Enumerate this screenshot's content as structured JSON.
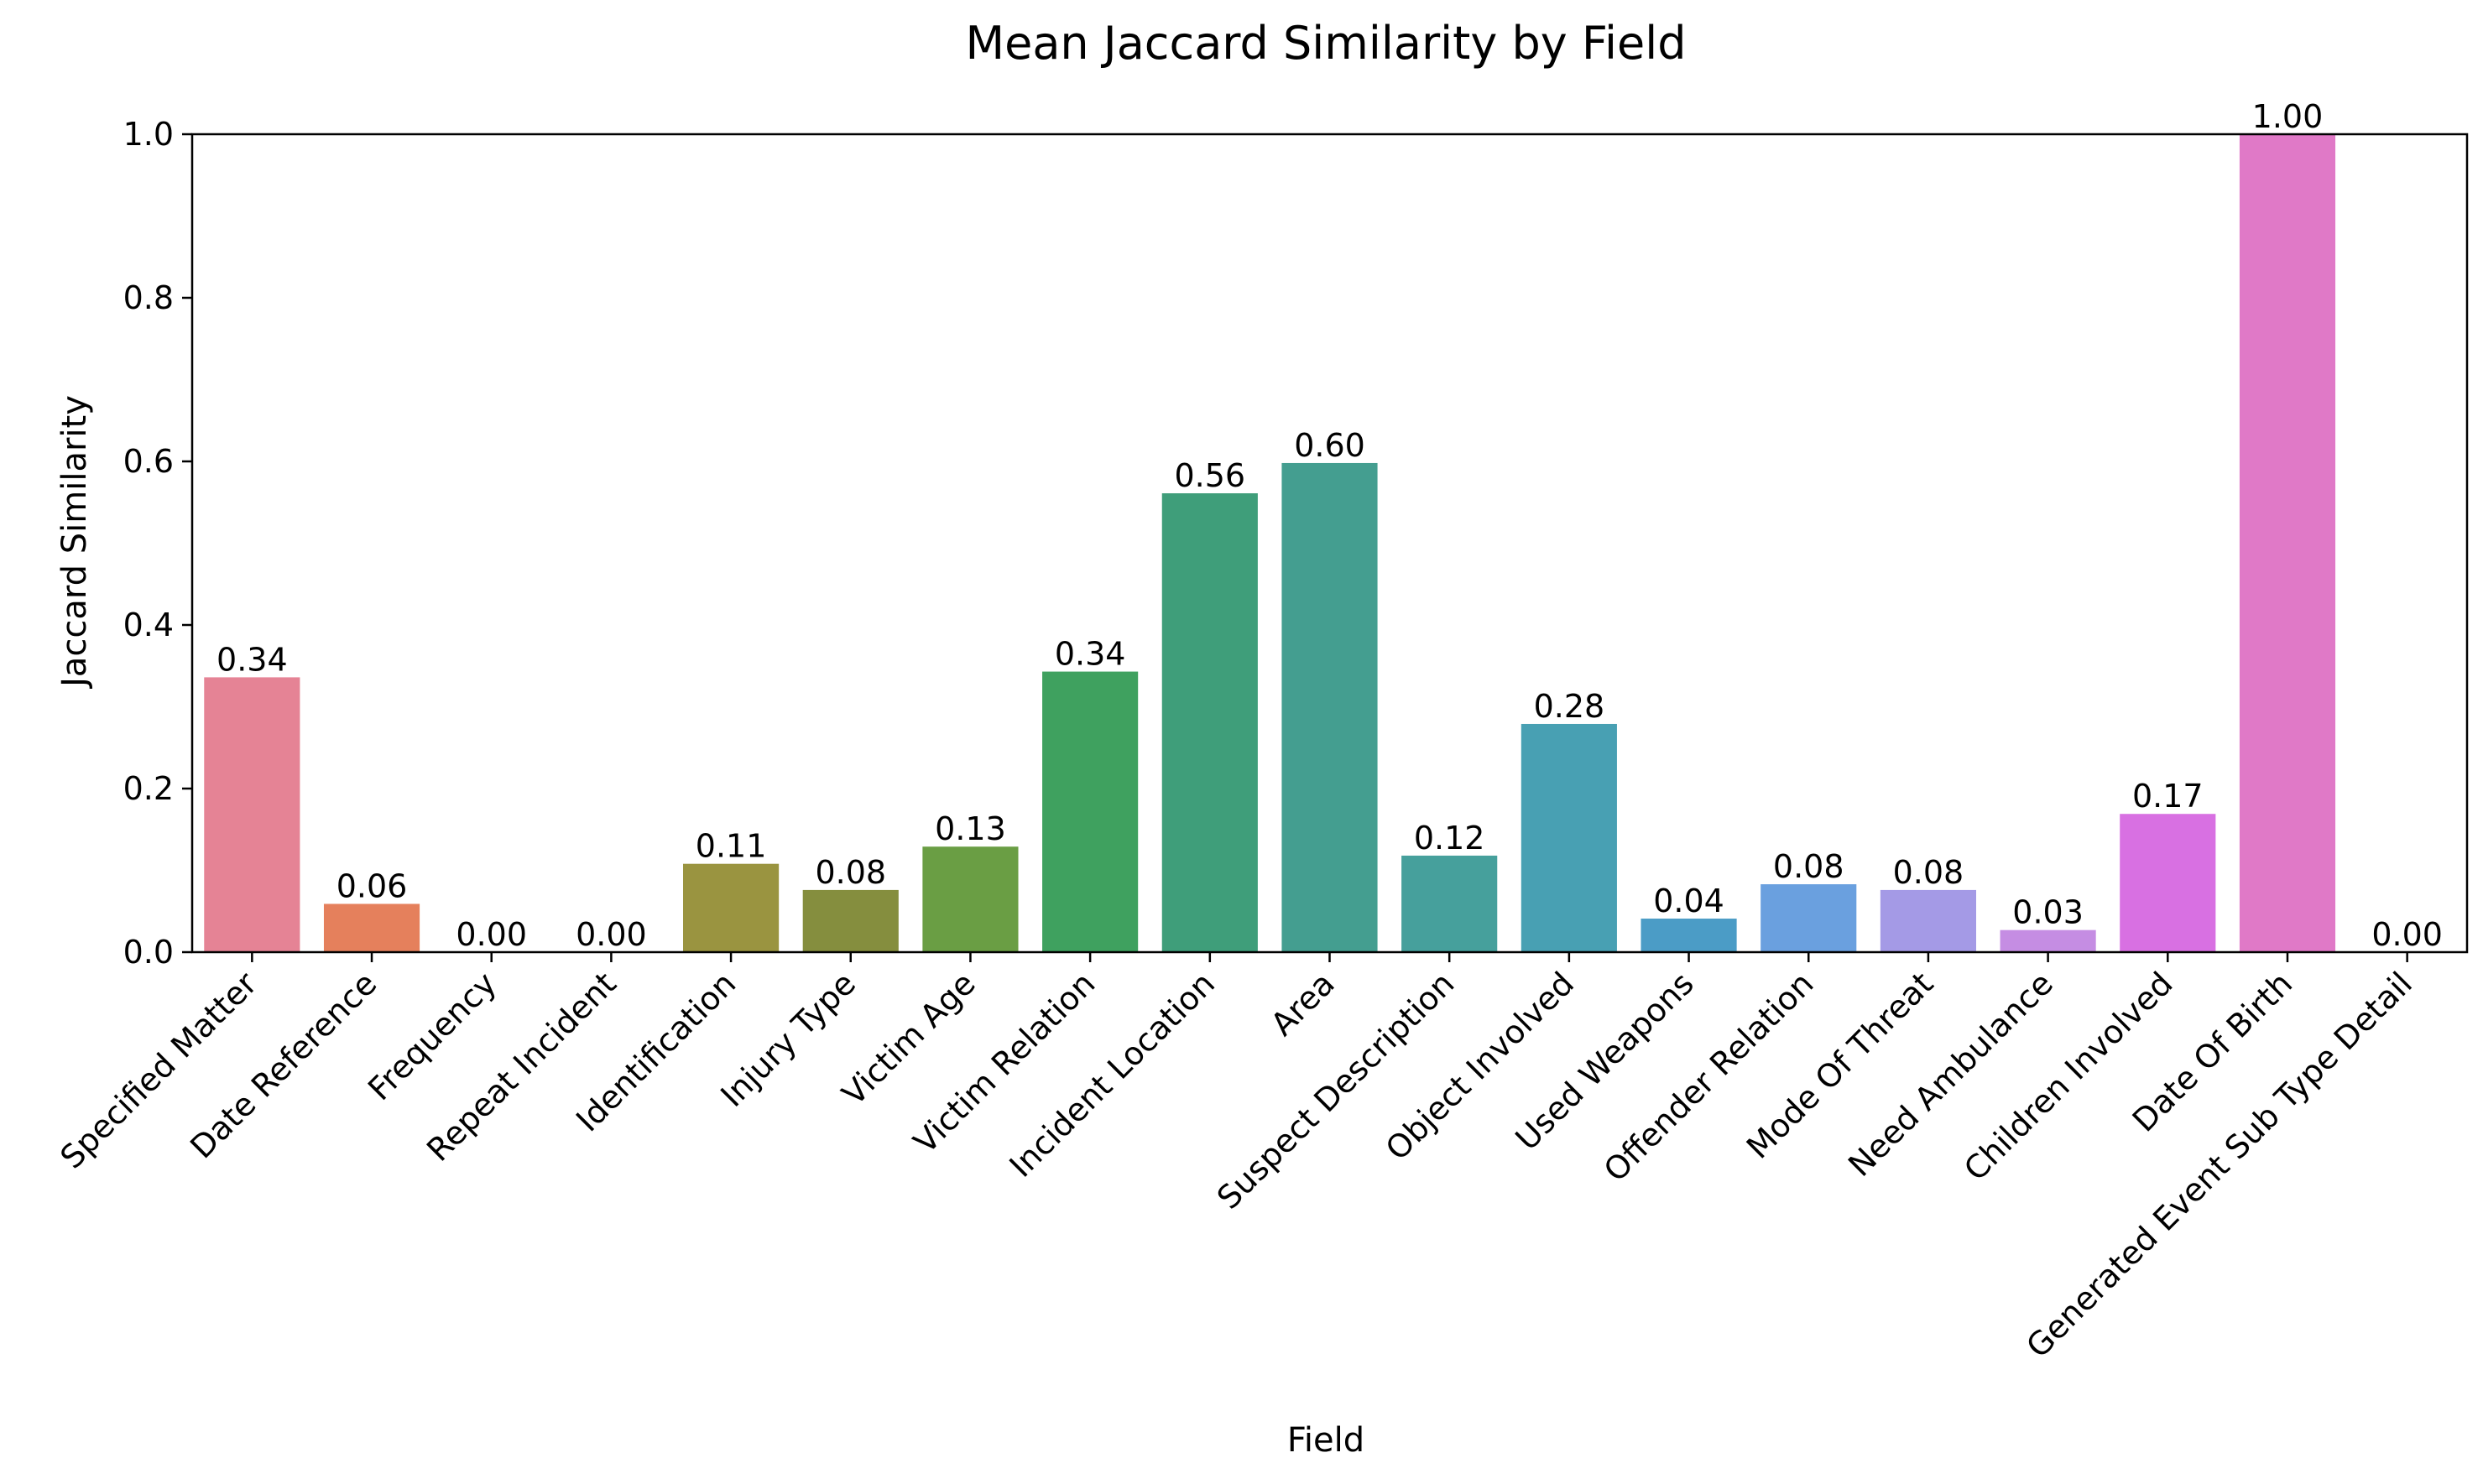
{
  "chart_data": {
    "type": "bar",
    "title": "Mean Jaccard Similarity by Field",
    "xlabel": "Field",
    "ylabel": "Jaccard Similarity",
    "ylim": [
      0,
      1.0
    ],
    "yticks": [
      0.0,
      0.2,
      0.4,
      0.6,
      0.8,
      1.0
    ],
    "ytick_labels": [
      "0.0",
      "0.2",
      "0.4",
      "0.6",
      "0.8",
      "1.0"
    ],
    "grid": false,
    "categories": [
      "Specified Matter",
      "Date Reference",
      "Frequency",
      "Repeat Incident",
      "Identification",
      "Injury Type",
      "Victim Age",
      "Victim Relation",
      "Incident Location",
      "Area",
      "Suspect Description",
      "Object Involved",
      "Used Weapons",
      "Offender Relation",
      "Mode Of Threat",
      "Need Ambulance",
      "Children Involved",
      "Date Of Birth",
      "Generated Event Sub Type Detail"
    ],
    "values": [
      0.336,
      0.059,
      0.0,
      0.0,
      0.108,
      0.076,
      0.129,
      0.343,
      0.561,
      0.598,
      0.118,
      0.279,
      0.041,
      0.083,
      0.076,
      0.027,
      0.169,
      1.0,
      0.0
    ],
    "value_labels": [
      "0.34",
      "0.06",
      "0.00",
      "0.00",
      "0.11",
      "0.08",
      "0.13",
      "0.34",
      "0.56",
      "0.60",
      "0.12",
      "0.28",
      "0.04",
      "0.08",
      "0.08",
      "0.03",
      "0.17",
      "1.00",
      "0.00"
    ],
    "colors": [
      "#e58395",
      "#e5805c",
      "#c8913f",
      "#b19740",
      "#9a9440",
      "#858e3e",
      "#6a9e44",
      "#3fa15f",
      "#3f9e7a",
      "#449e90",
      "#46a09c",
      "#48a0b3",
      "#4b9cc6",
      "#6aa0df",
      "#a49ae6",
      "#c58de3",
      "#d870e2",
      "#e079c7",
      "#e480ad"
    ]
  }
}
